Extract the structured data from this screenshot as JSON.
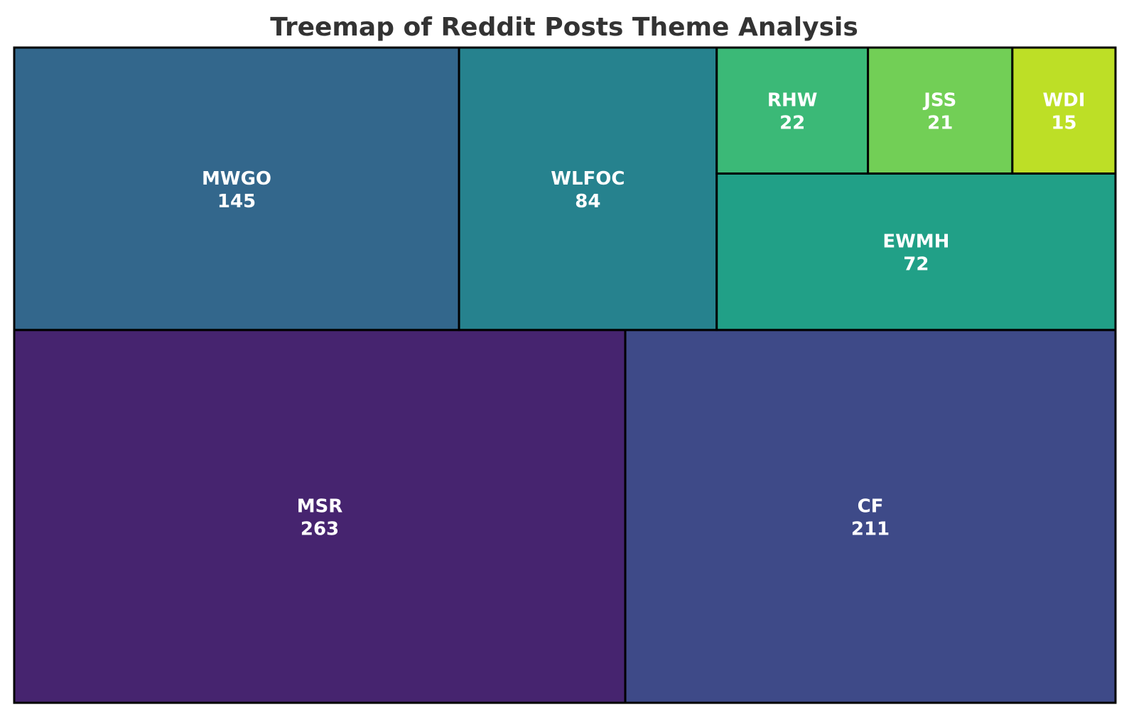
{
  "chart_data": {
    "type": "treemap",
    "title": "Treemap of Reddit Posts Theme Analysis",
    "items": [
      {
        "label": "MSR",
        "value": 263,
        "color": "#46246f"
      },
      {
        "label": "CF",
        "value": 211,
        "color": "#3e4a88"
      },
      {
        "label": "MWGO",
        "value": 145,
        "color": "#33678c"
      },
      {
        "label": "WLFOC",
        "value": 84,
        "color": "#26828e"
      },
      {
        "label": "EWMH",
        "value": 72,
        "color": "#21a087"
      },
      {
        "label": "RHW",
        "value": 22,
        "color": "#3bb977"
      },
      {
        "label": "JSS",
        "value": 21,
        "color": "#72cf56"
      },
      {
        "label": "WDI",
        "value": 15,
        "color": "#bddf26"
      }
    ]
  }
}
